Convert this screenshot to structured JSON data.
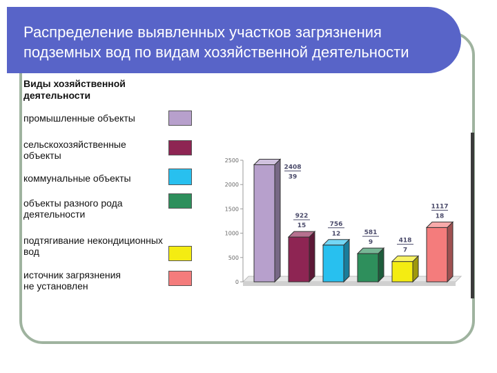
{
  "slide": {
    "title_line1": "Распределение выявленных участков загрязнения",
    "title_line2": "подземных вод по видам хозяйственной деятельности"
  },
  "legend": {
    "heading_line1": "Виды хозяйственной",
    "heading_line2": "деятельности",
    "items": [
      {
        "label_line1": "промышленные объекты",
        "label_line2": "",
        "color": "#b7a0cc"
      },
      {
        "label_line1": "сельскохозяйственные",
        "label_line2": "объекты",
        "color": "#8e2553"
      },
      {
        "label_line1": "коммунальные объекты",
        "label_line2": "",
        "color": "#28c0ef"
      },
      {
        "label_line1": "объекты разного рода",
        "label_line2": "деятельности",
        "color": "#2e8f5c"
      },
      {
        "label_line1": "подтягивание некондиционных",
        "label_line2": "вод",
        "color": "#f4ec12"
      },
      {
        "label_line1": "источник загрязнения",
        "label_line2": "не установлен",
        "color": "#f47c7c"
      }
    ]
  },
  "chart_data": {
    "type": "bar",
    "categories": [
      "промышленные объекты",
      "сельскохозяйственные объекты",
      "коммунальные объекты",
      "объекты разного рода деятельности",
      "подтягивание некондиционных вод",
      "источник загрязнения не установлен"
    ],
    "values": [
      2408,
      922,
      756,
      581,
      418,
      1117
    ],
    "percent_labels": [
      "39",
      "15",
      "12",
      "9",
      "7",
      "18"
    ],
    "value_labels": [
      "2408",
      "922",
      "756",
      "581",
      "418",
      "1117"
    ],
    "colors": [
      "#b7a0cc",
      "#8e2553",
      "#28c0ef",
      "#2e8f5c",
      "#f4ec12",
      "#f47c7c"
    ],
    "y_ticks": [
      "0",
      "500",
      "1000",
      "1500",
      "2000",
      "2500"
    ],
    "ylim": [
      0,
      2500
    ],
    "grid": false,
    "view": "3d"
  }
}
